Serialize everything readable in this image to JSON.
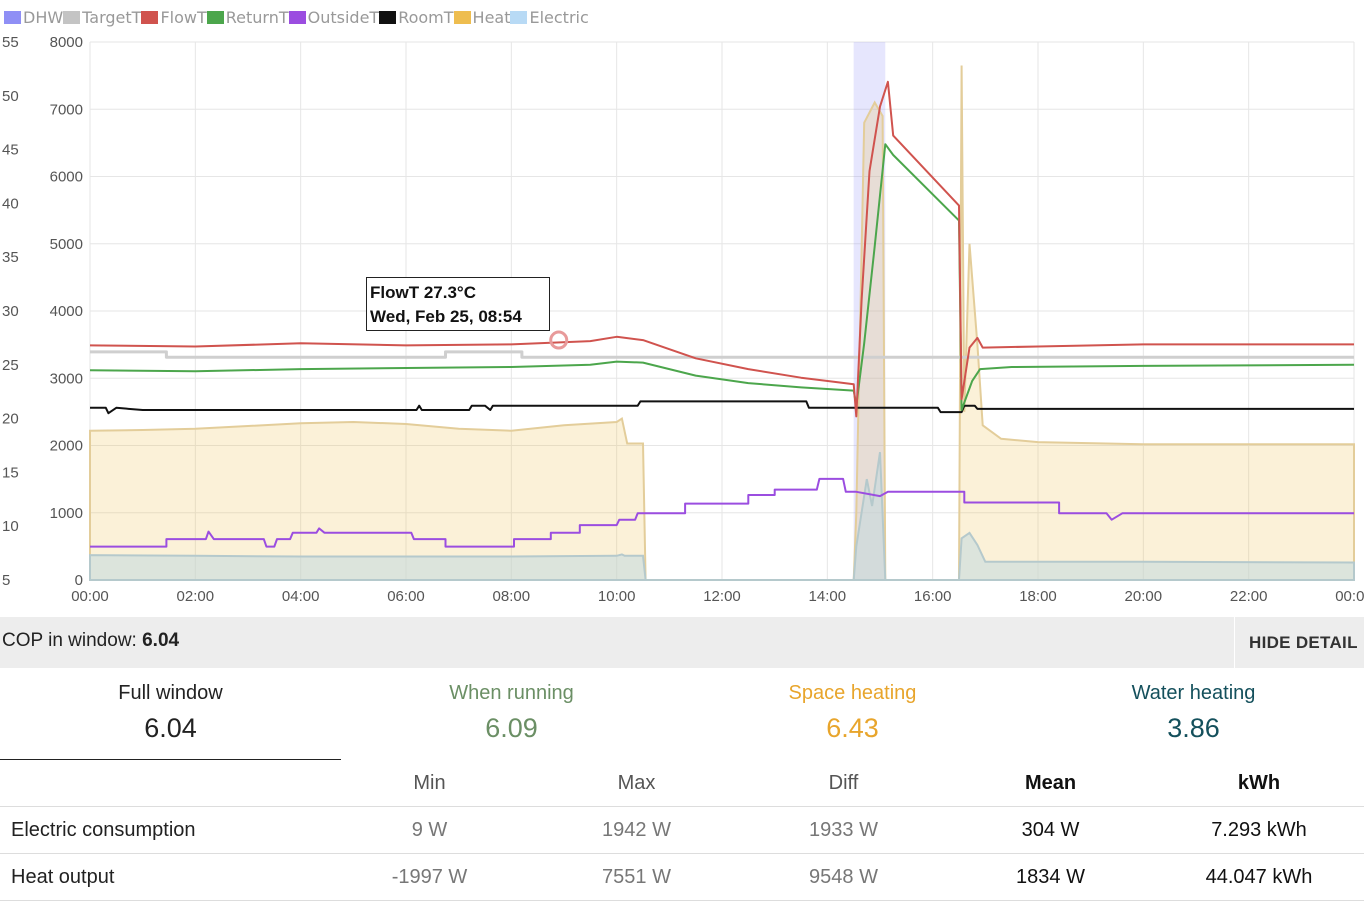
{
  "legend": [
    {
      "name": "DHW",
      "color": "#8f8ff5"
    },
    {
      "name": "TargetT",
      "color": "#c4c4c4"
    },
    {
      "name": "FlowT",
      "color": "#d0534e"
    },
    {
      "name": "ReturnT",
      "color": "#4ca64c"
    },
    {
      "name": "OutsideT",
      "color": "#9b4de0"
    },
    {
      "name": "RoomT",
      "color": "#111111"
    },
    {
      "name": "Heat",
      "color": "#eebd4f"
    },
    {
      "name": "Electric",
      "color": "#b8daf5"
    }
  ],
  "chart_data": {
    "type": "line",
    "x_axis": {
      "min_hours": 0,
      "max_hours": 24,
      "ticks": [
        "00:00",
        "02:00",
        "04:00",
        "06:00",
        "08:00",
        "10:00",
        "12:00",
        "14:00",
        "16:00",
        "18:00",
        "20:00",
        "22:00",
        "00:00"
      ]
    },
    "y_left_temp": {
      "min": 5,
      "max": 55,
      "ticks": [
        5,
        10,
        15,
        20,
        25,
        30,
        35,
        40,
        45,
        50,
        55
      ]
    },
    "y_right_power": {
      "min": 0,
      "max": 8000,
      "ticks": [
        0,
        1000,
        2000,
        3000,
        4000,
        5000,
        6000,
        7000,
        8000
      ]
    },
    "dhw_periods": [
      [
        14.5,
        15.1
      ]
    ],
    "series": {
      "TargetT": [
        [
          0,
          26.2
        ],
        [
          1.45,
          26.2
        ],
        [
          1.45,
          25.7
        ],
        [
          6.75,
          25.7
        ],
        [
          6.75,
          26.2
        ],
        [
          8.2,
          26.2
        ],
        [
          8.2,
          25.7
        ],
        [
          24,
          25.7
        ]
      ],
      "FlowT": [
        [
          0,
          26.8
        ],
        [
          2,
          26.7
        ],
        [
          4,
          27.0
        ],
        [
          6,
          26.8
        ],
        [
          8,
          26.9
        ],
        [
          9.5,
          27.2
        ],
        [
          10,
          27.6
        ],
        [
          10.5,
          27.3
        ],
        [
          11.5,
          25.6
        ],
        [
          12.5,
          24.6
        ],
        [
          13.5,
          23.8
        ],
        [
          14.5,
          23.2
        ],
        [
          14.55,
          20.2
        ],
        [
          14.65,
          31
        ],
        [
          14.8,
          43
        ],
        [
          15.0,
          49
        ],
        [
          15.15,
          51.3
        ],
        [
          15.25,
          46.3
        ],
        [
          16.5,
          39.8
        ],
        [
          16.55,
          21.8
        ],
        [
          16.7,
          26.6
        ],
        [
          16.85,
          27.5
        ],
        [
          16.95,
          26.6
        ],
        [
          18,
          26.7
        ],
        [
          20,
          26.9
        ],
        [
          22,
          26.9
        ],
        [
          24,
          26.9
        ]
      ],
      "ReturnT": [
        [
          0,
          24.5
        ],
        [
          2,
          24.4
        ],
        [
          4,
          24.6
        ],
        [
          6,
          24.7
        ],
        [
          8,
          24.8
        ],
        [
          9.5,
          25
        ],
        [
          10,
          25.3
        ],
        [
          10.5,
          25.2
        ],
        [
          11.5,
          24
        ],
        [
          12.5,
          23.3
        ],
        [
          13.5,
          22.9
        ],
        [
          14.5,
          22.6
        ],
        [
          14.55,
          21.2
        ],
        [
          14.7,
          27
        ],
        [
          14.9,
          36
        ],
        [
          15.1,
          45.5
        ],
        [
          15.25,
          44.5
        ],
        [
          16.5,
          38.4
        ],
        [
          16.55,
          20.8
        ],
        [
          16.75,
          23.5
        ],
        [
          16.9,
          24.6
        ],
        [
          17.5,
          24.8
        ],
        [
          20,
          24.9
        ],
        [
          24,
          25
        ]
      ],
      "OutsideT": [
        [
          0,
          8.1
        ],
        [
          1.45,
          8.1
        ],
        [
          1.45,
          8.8
        ],
        [
          2.2,
          8.8
        ],
        [
          2.25,
          9.5
        ],
        [
          2.35,
          8.8
        ],
        [
          3.3,
          8.8
        ],
        [
          3.35,
          8.1
        ],
        [
          3.5,
          8.1
        ],
        [
          3.55,
          8.8
        ],
        [
          3.8,
          8.8
        ],
        [
          3.85,
          9.4
        ],
        [
          4.3,
          9.4
        ],
        [
          4.35,
          9.8
        ],
        [
          4.45,
          9.4
        ],
        [
          6.1,
          9.4
        ],
        [
          6.15,
          8.8
        ],
        [
          6.75,
          8.8
        ],
        [
          6.75,
          8.1
        ],
        [
          8.05,
          8.1
        ],
        [
          8.05,
          8.8
        ],
        [
          8.75,
          8.8
        ],
        [
          8.75,
          9.4
        ],
        [
          9.3,
          9.4
        ],
        [
          9.3,
          10.1
        ],
        [
          10,
          10.1
        ],
        [
          10.05,
          10.6
        ],
        [
          10.35,
          10.6
        ],
        [
          10.4,
          11.2
        ],
        [
          11.3,
          11.2
        ],
        [
          11.3,
          12.1
        ],
        [
          12.5,
          12.1
        ],
        [
          12.5,
          12.9
        ],
        [
          13.0,
          12.9
        ],
        [
          13.0,
          13.4
        ],
        [
          13.8,
          13.4
        ],
        [
          13.85,
          14.4
        ],
        [
          14.3,
          14.4
        ],
        [
          14.35,
          13.2
        ],
        [
          14.5,
          13.2
        ],
        [
          14.55,
          13.2
        ],
        [
          15.0,
          12.8
        ],
        [
          15.15,
          13.2
        ],
        [
          16.6,
          13.2
        ],
        [
          16.6,
          12.2
        ],
        [
          18.4,
          12.2
        ],
        [
          18.4,
          11.2
        ],
        [
          19.3,
          11.2
        ],
        [
          19.4,
          10.6
        ],
        [
          19.6,
          11.2
        ],
        [
          24,
          11.2
        ]
      ],
      "RoomT": [
        [
          0,
          21.0
        ],
        [
          0.3,
          21.0
        ],
        [
          0.35,
          20.5
        ],
        [
          0.5,
          21.0
        ],
        [
          1,
          20.8
        ],
        [
          4,
          20.8
        ],
        [
          6.2,
          20.8
        ],
        [
          6.25,
          21.2
        ],
        [
          6.3,
          20.8
        ],
        [
          7.2,
          20.8
        ],
        [
          7.25,
          21.2
        ],
        [
          7.5,
          21.2
        ],
        [
          7.6,
          20.8
        ],
        [
          7.65,
          21.2
        ],
        [
          10.4,
          21.2
        ],
        [
          10.45,
          21.6
        ],
        [
          13.6,
          21.6
        ],
        [
          13.65,
          21.0
        ],
        [
          14.5,
          21.0
        ],
        [
          14.55,
          21.0
        ],
        [
          16.1,
          21.0
        ],
        [
          16.15,
          20.6
        ],
        [
          16.55,
          20.6
        ],
        [
          16.6,
          21.2
        ],
        [
          16.8,
          21.2
        ],
        [
          16.85,
          20.9
        ],
        [
          24,
          20.9
        ]
      ],
      "Heat": [
        [
          0,
          2220
        ],
        [
          1,
          2230
        ],
        [
          2,
          2250
        ],
        [
          3,
          2290
        ],
        [
          4,
          2330
        ],
        [
          5,
          2350
        ],
        [
          6,
          2320
        ],
        [
          7,
          2250
        ],
        [
          8,
          2220
        ],
        [
          9,
          2300
        ],
        [
          10,
          2350
        ],
        [
          10.1,
          2400
        ],
        [
          10.2,
          2030
        ],
        [
          10.5,
          2030
        ],
        [
          10.55,
          0
        ],
        [
          14.5,
          0
        ],
        [
          14.55,
          1000
        ],
        [
          14.7,
          6800
        ],
        [
          14.9,
          7100
        ],
        [
          15.05,
          6900
        ],
        [
          15.1,
          0
        ],
        [
          16.5,
          0
        ],
        [
          16.55,
          7650
        ],
        [
          16.6,
          2500
        ],
        [
          16.7,
          5000
        ],
        [
          16.85,
          3500
        ],
        [
          16.95,
          2300
        ],
        [
          17.3,
          2100
        ],
        [
          18,
          2050
        ],
        [
          20,
          2020
        ],
        [
          24,
          2020
        ]
      ],
      "Electric": [
        [
          0,
          370
        ],
        [
          2,
          360
        ],
        [
          4,
          350
        ],
        [
          6,
          350
        ],
        [
          8,
          350
        ],
        [
          10,
          360
        ],
        [
          10.1,
          380
        ],
        [
          10.15,
          360
        ],
        [
          10.5,
          360
        ],
        [
          10.55,
          0
        ],
        [
          14.5,
          0
        ],
        [
          14.55,
          500
        ],
        [
          14.75,
          1500
        ],
        [
          14.85,
          1100
        ],
        [
          15.0,
          1900
        ],
        [
          15.1,
          0
        ],
        [
          16.5,
          0
        ],
        [
          16.55,
          620
        ],
        [
          16.7,
          700
        ],
        [
          16.85,
          520
        ],
        [
          17,
          270
        ],
        [
          20,
          270
        ],
        [
          24,
          260
        ]
      ]
    },
    "hover": {
      "series": "FlowT",
      "time": "Wed, Feb 25, 08:54",
      "hour": 8.9,
      "value": 27.3
    }
  },
  "tooltip": {
    "line1": "FlowT 27.3°C",
    "line2": "Wed, Feb 25, 08:54"
  },
  "cop": {
    "label": "COP in window:",
    "value": "6.04",
    "hide_button": "HIDE DETAIL"
  },
  "stats": [
    {
      "label": "Full window",
      "value": "6.04",
      "color": "#222222"
    },
    {
      "label": "When running",
      "value": "6.09",
      "color": "#6b8f65"
    },
    {
      "label": "Space heating",
      "value": "6.43",
      "color": "#e8a52c"
    },
    {
      "label": "Water heating",
      "value": "3.86",
      "color": "#14505c"
    }
  ],
  "table": {
    "headers": [
      "",
      "Min",
      "Max",
      "Diff",
      "Mean",
      "kWh"
    ],
    "rows": [
      {
        "label": "Electric consumption",
        "min": "9 W",
        "max": "1942 W",
        "diff": "1933 W",
        "mean": "304 W",
        "kwh": "7.293 kWh"
      },
      {
        "label": "Heat output",
        "min": "-1997 W",
        "max": "7551 W",
        "diff": "9548 W",
        "mean": "1834 W",
        "kwh": "44.047 kWh"
      }
    ]
  }
}
